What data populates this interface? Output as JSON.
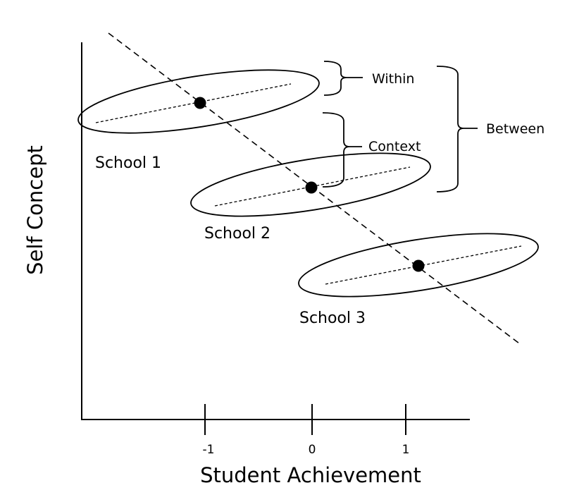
{
  "axes": {
    "x_title": "Student Achievement",
    "y_title": "Self Concept",
    "x_ticks": [
      "-1",
      "0",
      "1"
    ]
  },
  "schools": [
    {
      "label": "School 1"
    },
    {
      "label": "School 2"
    },
    {
      "label": "School 3"
    }
  ],
  "braces": {
    "within": "Within",
    "context": "Context",
    "between": "Between"
  }
}
